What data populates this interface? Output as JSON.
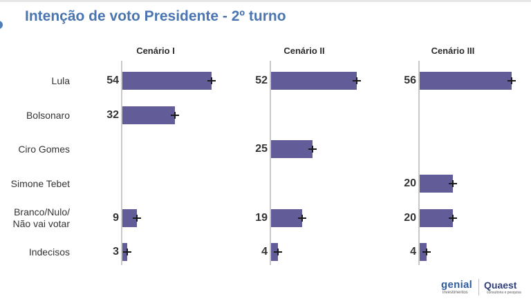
{
  "title": "Intenção de voto Presidente - 2º turno",
  "logos": {
    "genial": "genial",
    "genial_sub": "investimentos",
    "quaest": "Quaest",
    "quaest_sub": "consultoria e pesquisa"
  },
  "chart_data": {
    "type": "bar",
    "orientation": "horizontal",
    "categories": [
      "Lula",
      "Bolsonaro",
      "Ciro Gomes",
      "Simone Tebet",
      "Branco/Nulo/\nNão vai votar",
      "Indecisos"
    ],
    "panels": [
      {
        "name": "Cenário I",
        "values": [
          54,
          32,
          null,
          null,
          9,
          3
        ]
      },
      {
        "name": "Cenário II",
        "values": [
          52,
          null,
          25,
          null,
          19,
          4
        ]
      },
      {
        "name": "Cenário III",
        "values": [
          56,
          null,
          null,
          20,
          20,
          4
        ]
      }
    ],
    "error_bars": true,
    "xlim": [
      0,
      60
    ],
    "bar_color": "#625d99",
    "title_color": "#4a75b0"
  }
}
